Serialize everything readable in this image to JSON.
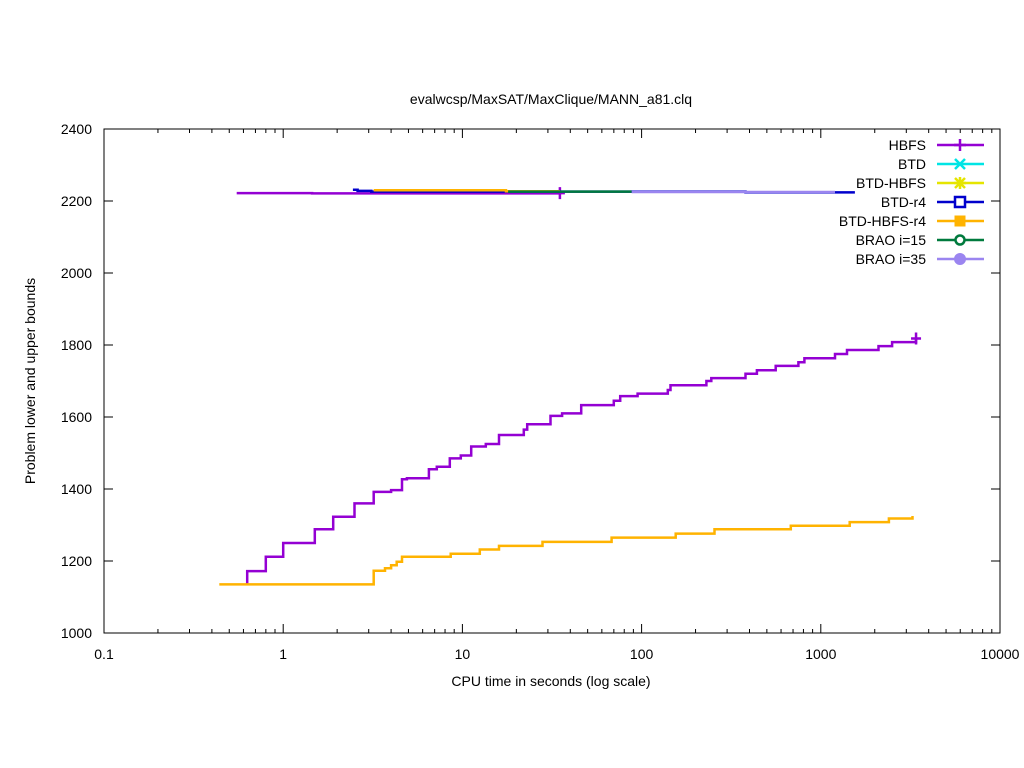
{
  "chart_data": {
    "type": "line",
    "title": "evalwcsp/MaxSAT/MaxClique/MANN_a81.clq",
    "xlabel": "CPU time in seconds (log scale)",
    "ylabel": "Problem lower and upper bounds",
    "xscale": "log",
    "xlim": [
      0.1,
      10000
    ],
    "ylim": [
      1000,
      2400
    ],
    "xticks": [
      0.1,
      1,
      10,
      100,
      1000,
      10000
    ],
    "xtick_labels": [
      "0.1",
      "1",
      "10",
      "100",
      "1000",
      "10000"
    ],
    "yticks": [
      1000,
      1200,
      1400,
      1600,
      1800,
      2000,
      2200,
      2400
    ],
    "ytick_labels": [
      "1000",
      "1200",
      "1400",
      "1600",
      "1800",
      "2000",
      "2200",
      "2400"
    ],
    "grid": false,
    "legend_position": "top-right",
    "series": [
      {
        "name": "HBFS",
        "color": "#9400d3",
        "marker": "plus",
        "lines": [
          [
            [
              0.55,
              2222
            ],
            [
              1.45,
              2222
            ],
            [
              1.45,
              2221
            ],
            [
              35,
              2221
            ],
            [
              35,
              2222
            ]
          ],
          [
            [
              0.63,
              1137
            ],
            [
              0.63,
              1172
            ],
            [
              0.8,
              1172
            ],
            [
              0.8,
              1212
            ],
            [
              1.0,
              1212
            ],
            [
              1.0,
              1250
            ],
            [
              1.5,
              1250
            ],
            [
              1.5,
              1288
            ],
            [
              1.9,
              1288
            ],
            [
              1.9,
              1323
            ],
            [
              2.5,
              1323
            ],
            [
              2.5,
              1360
            ],
            [
              3.2,
              1360
            ],
            [
              3.2,
              1392
            ],
            [
              4.0,
              1392
            ],
            [
              4.0,
              1397
            ],
            [
              4.6,
              1397
            ],
            [
              4.6,
              1427
            ],
            [
              4.9,
              1427
            ],
            [
              4.9,
              1430
            ],
            [
              6.5,
              1430
            ],
            [
              6.5,
              1455
            ],
            [
              7.2,
              1455
            ],
            [
              7.2,
              1462
            ],
            [
              8.5,
              1462
            ],
            [
              8.5,
              1485
            ],
            [
              9.8,
              1485
            ],
            [
              9.8,
              1493
            ],
            [
              11.2,
              1493
            ],
            [
              11.2,
              1518
            ],
            [
              13.5,
              1518
            ],
            [
              13.5,
              1525
            ],
            [
              16,
              1525
            ],
            [
              16,
              1550
            ],
            [
              22,
              1550
            ],
            [
              22,
              1565
            ],
            [
              23,
              1565
            ],
            [
              23,
              1580
            ],
            [
              31,
              1580
            ],
            [
              31,
              1603
            ],
            [
              36,
              1603
            ],
            [
              36,
              1610
            ],
            [
              46,
              1610
            ],
            [
              46,
              1633
            ],
            [
              70,
              1633
            ],
            [
              70,
              1645
            ],
            [
              76,
              1645
            ],
            [
              76,
              1658
            ],
            [
              95,
              1658
            ],
            [
              95,
              1665
            ],
            [
              140,
              1665
            ],
            [
              140,
              1675
            ],
            [
              145,
              1675
            ],
            [
              145,
              1688
            ],
            [
              230,
              1688
            ],
            [
              230,
              1700
            ],
            [
              245,
              1700
            ],
            [
              245,
              1708
            ],
            [
              380,
              1708
            ],
            [
              380,
              1720
            ],
            [
              440,
              1720
            ],
            [
              440,
              1730
            ],
            [
              560,
              1730
            ],
            [
              560,
              1742
            ],
            [
              750,
              1742
            ],
            [
              750,
              1752
            ],
            [
              810,
              1752
            ],
            [
              810,
              1763
            ],
            [
              1200,
              1763
            ],
            [
              1200,
              1775
            ],
            [
              1400,
              1775
            ],
            [
              1400,
              1786
            ],
            [
              2100,
              1786
            ],
            [
              2100,
              1797
            ],
            [
              2500,
              1797
            ],
            [
              2500,
              1808
            ],
            [
              3400,
              1808
            ],
            [
              3400,
              1818
            ]
          ]
        ]
      },
      {
        "name": "BTD",
        "color": "#00e5e5",
        "marker": "cross",
        "lines": []
      },
      {
        "name": "BTD-HBFS",
        "color": "#e5e500",
        "marker": "star",
        "lines": []
      },
      {
        "name": "BTD-r4",
        "color": "#0000cc",
        "marker": "open-square",
        "lines": [
          [
            [
              2.45,
              2231
            ],
            [
              2.6,
              2231
            ],
            [
              2.6,
              2228
            ],
            [
              3.1,
              2228
            ],
            [
              3.1,
              2226
            ],
            [
              380,
              2226
            ],
            [
              380,
              2224
            ],
            [
              1550,
              2224
            ]
          ]
        ]
      },
      {
        "name": "BTD-HBFS-r4",
        "color": "#ffb300",
        "marker": "filled-square",
        "lines": [
          [
            [
              3.2,
              2230
            ],
            [
              17.5,
              2230
            ],
            [
              17.5,
              2227
            ],
            [
              35,
              2227
            ]
          ],
          [
            [
              0.44,
              1135
            ],
            [
              3.2,
              1135
            ],
            [
              3.2,
              1173
            ],
            [
              3.7,
              1173
            ],
            [
              3.7,
              1180
            ],
            [
              4.0,
              1180
            ],
            [
              4.0,
              1188
            ],
            [
              4.3,
              1188
            ],
            [
              4.3,
              1198
            ],
            [
              4.6,
              1198
            ],
            [
              4.6,
              1212
            ],
            [
              8.6,
              1212
            ],
            [
              8.6,
              1220
            ],
            [
              12.5,
              1220
            ],
            [
              12.5,
              1232
            ],
            [
              16,
              1232
            ],
            [
              16,
              1242
            ],
            [
              28,
              1242
            ],
            [
              28,
              1253
            ],
            [
              68,
              1253
            ],
            [
              68,
              1265
            ],
            [
              155,
              1265
            ],
            [
              155,
              1276
            ],
            [
              255,
              1276
            ],
            [
              255,
              1288
            ],
            [
              680,
              1288
            ],
            [
              680,
              1298
            ],
            [
              1450,
              1298
            ],
            [
              1450,
              1308
            ],
            [
              2400,
              1308
            ],
            [
              2400,
              1318
            ],
            [
              3250,
              1318
            ],
            [
              3250,
              1325
            ]
          ]
        ]
      },
      {
        "name": "BRAO i=15",
        "color": "#007a3d",
        "marker": "open-circle",
        "lines": [
          [
            [
              18,
              2226
            ],
            [
              88,
              2226
            ]
          ]
        ]
      },
      {
        "name": "BRAO i=35",
        "color": "#9b85f0",
        "marker": "filled-circle",
        "lines": [
          [
            [
              88,
              2225
            ],
            [
              1200,
              2225
            ]
          ]
        ]
      }
    ]
  }
}
